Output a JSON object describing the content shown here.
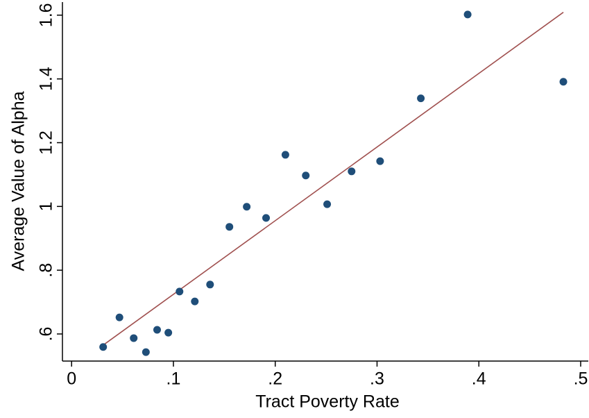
{
  "chart_data": {
    "type": "scatter",
    "x_label": "Tract Poverty Rate",
    "y_label": "Average Value of Alpha",
    "x": [
      0.031,
      0.047,
      0.061,
      0.073,
      0.084,
      0.095,
      0.106,
      0.121,
      0.136,
      0.155,
      0.172,
      0.191,
      0.21,
      0.23,
      0.251,
      0.275,
      0.303,
      0.343,
      0.389,
      0.483
    ],
    "values": [
      0.559,
      0.652,
      0.587,
      0.543,
      0.613,
      0.604,
      0.733,
      0.702,
      0.755,
      0.936,
      0.999,
      0.964,
      1.162,
      1.097,
      1.007,
      1.11,
      1.142,
      1.339,
      1.602,
      1.391
    ],
    "color": "#1f4e79",
    "fit": {
      "x": [
        0.031,
        0.483
      ],
      "values": [
        0.565,
        1.609
      ],
      "color": "#a0504f"
    },
    "xlim": [
      -0.009,
      0.5075
    ],
    "ylim": [
      0.515,
      1.641
    ],
    "xticks": [
      0,
      {
        "value": 0.1,
        "label": ".1"
      },
      {
        "value": 0.2,
        "label": ".2"
      },
      {
        "value": 0.3,
        "label": ".3"
      },
      {
        "value": 0.4,
        "label": ".4"
      },
      {
        "value": 0.5,
        "label": ".5"
      }
    ],
    "yticks": [
      {
        "value": 0.6,
        "label": ".6"
      },
      {
        "value": 0.8,
        "label": ".8"
      },
      1,
      1.2,
      1.4,
      1.6
    ]
  }
}
